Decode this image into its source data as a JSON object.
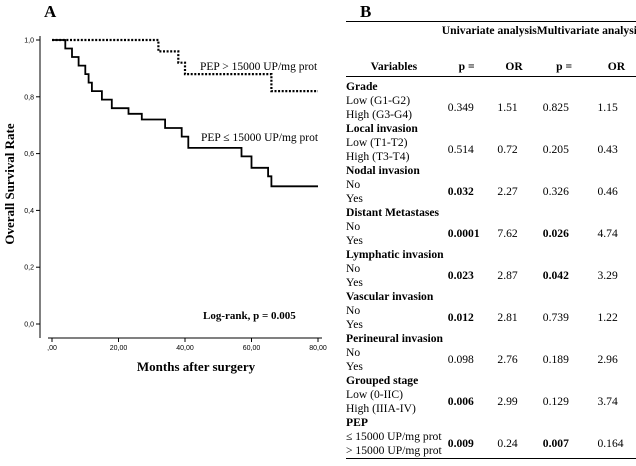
{
  "panel_a": {
    "letter": "A",
    "chart_data": {
      "type": "line",
      "chart_subtype": "kaplan-meier",
      "xlabel": "Months after surgery",
      "ylabel": "Overall Survival Rate",
      "xlim": [
        0,
        80
      ],
      "ylim": [
        0,
        1.0
      ],
      "x_ticks": [
        ",00",
        "20,00",
        "40,00",
        "60,00",
        "80,00"
      ],
      "x_tick_values": [
        0,
        20,
        40,
        60,
        80
      ],
      "y_ticks": [
        "0,0",
        "0,2",
        "0,4",
        "0,6",
        "0,8",
        "1,0"
      ],
      "y_tick_values": [
        0,
        0.2,
        0.4,
        0.6,
        0.8,
        1.0
      ],
      "grid": false,
      "annotation": "Log-rank,  p = 0.005",
      "series": [
        {
          "name": "PEP > 15000 UP/mg prot",
          "style": "dotted",
          "steps": [
            [
              0,
              1.0
            ],
            [
              32,
              1.0
            ],
            [
              32,
              0.96
            ],
            [
              38,
              0.96
            ],
            [
              38,
              0.92
            ],
            [
              40,
              0.92
            ],
            [
              40,
              0.88
            ],
            [
              66,
              0.88
            ],
            [
              66,
              0.82
            ],
            [
              80,
              0.82
            ]
          ]
        },
        {
          "name": "PEP ≤ 15000 UP/mg prot",
          "style": "solid",
          "steps": [
            [
              0,
              1.0
            ],
            [
              4,
              1.0
            ],
            [
              4,
              0.97
            ],
            [
              6,
              0.97
            ],
            [
              6,
              0.94
            ],
            [
              8,
              0.94
            ],
            [
              8,
              0.91
            ],
            [
              10,
              0.91
            ],
            [
              10,
              0.88
            ],
            [
              11,
              0.88
            ],
            [
              11,
              0.85
            ],
            [
              12,
              0.85
            ],
            [
              12,
              0.82
            ],
            [
              15,
              0.82
            ],
            [
              15,
              0.79
            ],
            [
              18,
              0.79
            ],
            [
              18,
              0.76
            ],
            [
              23,
              0.76
            ],
            [
              23,
              0.74
            ],
            [
              27,
              0.74
            ],
            [
              27,
              0.72
            ],
            [
              34,
              0.72
            ],
            [
              34,
              0.69
            ],
            [
              39,
              0.69
            ],
            [
              39,
              0.66
            ],
            [
              41,
              0.66
            ],
            [
              41,
              0.62
            ],
            [
              57,
              0.62
            ],
            [
              57,
              0.59
            ],
            [
              60,
              0.59
            ],
            [
              60,
              0.55
            ],
            [
              65,
              0.55
            ],
            [
              65,
              0.52
            ],
            [
              66,
              0.52
            ],
            [
              66,
              0.485
            ],
            [
              80,
              0.485
            ]
          ]
        }
      ]
    }
  },
  "panel_b": {
    "letter": "B",
    "headers": {
      "variables": "Variables",
      "univariate": "Univariate analysis",
      "multivariate": "Multivariate analysis",
      "p": "p =",
      "or": "OR"
    },
    "groups": [
      {
        "title": "Grade",
        "rows": [
          {
            "label": "Low (G1-G2)",
            "u_p": "0.349",
            "u_or": "1.51",
            "m_p": "0.825",
            "m_or": "1.15",
            "u_bold": false,
            "m_bold": false
          },
          {
            "label": "High (G3-G4)",
            "u_p": "",
            "u_or": "",
            "m_p": "",
            "m_or": "",
            "u_bold": false,
            "m_bold": false
          }
        ]
      },
      {
        "title": "Local invasion",
        "rows": [
          {
            "label": "Low (T1-T2)",
            "u_p": "0.514",
            "u_or": "0.72",
            "m_p": "0.205",
            "m_or": "0.43",
            "u_bold": false,
            "m_bold": false
          },
          {
            "label": "High  (T3-T4)",
            "u_p": "",
            "u_or": "",
            "m_p": "",
            "m_or": "",
            "u_bold": false,
            "m_bold": false
          }
        ]
      },
      {
        "title": "Nodal invasion",
        "rows": [
          {
            "label": "No",
            "u_p": "0.032",
            "u_or": "2.27",
            "m_p": "0.326",
            "m_or": "0.46",
            "u_bold": true,
            "m_bold": false
          },
          {
            "label": "Yes",
            "u_p": "",
            "u_or": "",
            "m_p": "",
            "m_or": "",
            "u_bold": false,
            "m_bold": false
          }
        ]
      },
      {
        "title": "Distant Metastases",
        "rows": [
          {
            "label": "No",
            "u_p": "0.0001",
            "u_or": "7.62",
            "m_p": "0.026",
            "m_or": "4.74",
            "u_bold": true,
            "m_bold": true
          },
          {
            "label": "Yes",
            "u_p": "",
            "u_or": "",
            "m_p": "",
            "m_or": "",
            "u_bold": false,
            "m_bold": false
          }
        ]
      },
      {
        "title": "Lymphatic invasion",
        "rows": [
          {
            "label": "No",
            "u_p": "0.023",
            "u_or": "2.87",
            "m_p": "0.042",
            "m_or": "3.29",
            "u_bold": true,
            "m_bold": true
          },
          {
            "label": "Yes",
            "u_p": "",
            "u_or": "",
            "m_p": "",
            "m_or": "",
            "u_bold": false,
            "m_bold": false
          }
        ]
      },
      {
        "title": "Vascular invasion",
        "rows": [
          {
            "label": "No",
            "u_p": "0.012",
            "u_or": "2.81",
            "m_p": "0.739",
            "m_or": "1.22",
            "u_bold": true,
            "m_bold": false
          },
          {
            "label": "Yes",
            "u_p": "",
            "u_or": "",
            "m_p": "",
            "m_or": "",
            "u_bold": false,
            "m_bold": false
          }
        ]
      },
      {
        "title": "Perineural invasion",
        "rows": [
          {
            "label": "No",
            "u_p": "0.098",
            "u_or": "2.76",
            "m_p": "0.189",
            "m_or": "2.96",
            "u_bold": false,
            "m_bold": false
          },
          {
            "label": "Yes",
            "u_p": "",
            "u_or": "",
            "m_p": "",
            "m_or": "",
            "u_bold": false,
            "m_bold": false
          }
        ]
      },
      {
        "title": "Grouped stage",
        "rows": [
          {
            "label": "Low (0-IIC)",
            "u_p": "0.006",
            "u_or": "2.99",
            "m_p": "0.129",
            "m_or": "3.74",
            "u_bold": true,
            "m_bold": false
          },
          {
            "label": "High (IIIA-IV)",
            "u_p": "",
            "u_or": "",
            "m_p": "",
            "m_or": "",
            "u_bold": false,
            "m_bold": false
          }
        ]
      },
      {
        "title": "PEP",
        "rows": [
          {
            "label": "≤ 15000 UP/mg prot",
            "u_p": "0.009",
            "u_or": "0.24",
            "m_p": "0.007",
            "m_or": "0.164",
            "u_bold": true,
            "m_bold": true
          },
          {
            "label": "> 15000 UP/mg prot",
            "u_p": "",
            "u_or": "",
            "m_p": "",
            "m_or": "",
            "u_bold": false,
            "m_bold": false
          }
        ]
      }
    ]
  }
}
